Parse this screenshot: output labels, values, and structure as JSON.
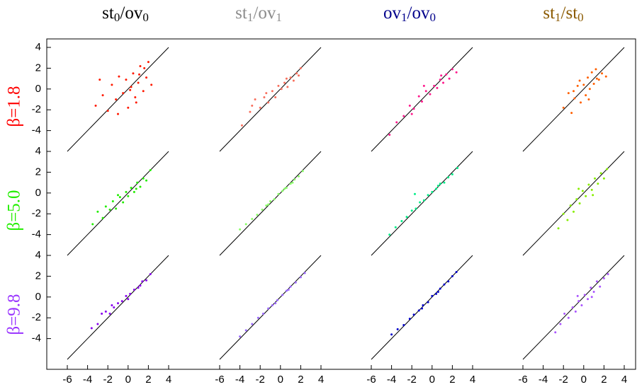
{
  "chart_data": [
    {
      "type": "scatter",
      "title": "st0/ov0",
      "title_color": "#000000",
      "ylabel": "β=1.8",
      "ylabel_color": "#ff0000",
      "color": "#ff1a00",
      "x": [
        -3.2,
        -2.5,
        -2.0,
        -1.6,
        -1.2,
        -0.9,
        -0.5,
        -0.2,
        0.0,
        0.3,
        0.5,
        0.7,
        1.0,
        1.2,
        1.5,
        1.8,
        2.0,
        2.3,
        -1.0,
        0.8,
        1.6,
        -2.8,
        0.2,
        1.1
      ],
      "y": [
        -1.6,
        -0.6,
        -2.1,
        0.4,
        -1.0,
        1.2,
        -0.4,
        0.9,
        -1.8,
        0.2,
        1.5,
        -0.8,
        0.6,
        2.2,
        -0.2,
        1.1,
        2.6,
        0.4,
        -2.4,
        -1.3,
        2.0,
        0.9,
        -0.1,
        1.4
      ],
      "xlim": [
        -6,
        4
      ],
      "ylim": [
        -6,
        4
      ],
      "yticks": [
        -4,
        -2,
        0,
        2,
        4
      ]
    },
    {
      "type": "scatter",
      "title": "st1/ov1",
      "title_color": "#8c8c8c",
      "color": "#f8705e",
      "x": [
        -3.8,
        -3.0,
        -2.5,
        -2.0,
        -1.6,
        -1.2,
        -0.8,
        -0.5,
        -0.2,
        0.1,
        0.4,
        0.7,
        1.0,
        1.3,
        1.6,
        2.0,
        -1.4,
        0.6,
        -2.8,
        1.8
      ],
      "y": [
        -3.5,
        -2.2,
        -1.0,
        -1.8,
        -0.8,
        -1.3,
        -0.2,
        -0.8,
        0.3,
        0.0,
        0.6,
        0.2,
        1.1,
        0.8,
        1.5,
        2.0,
        -0.4,
        1.0,
        -1.6,
        1.3
      ],
      "xlim": [
        -6,
        4
      ],
      "ylim": [
        -6,
        4
      ]
    },
    {
      "type": "scatter",
      "title": "ov1/ov0",
      "title_color": "#00008b",
      "color": "#ff1a8c",
      "x": [
        -4.2,
        -3.5,
        -2.8,
        -2.2,
        -1.8,
        -1.3,
        -1.0,
        -0.6,
        -0.2,
        0.2,
        0.5,
        0.8,
        1.1,
        1.4,
        1.7,
        2.0,
        2.4,
        -0.8,
        0.9,
        -2.0
      ],
      "y": [
        -4.4,
        -3.2,
        -2.6,
        -1.6,
        -1.9,
        -0.7,
        -1.2,
        -0.2,
        -0.5,
        0.3,
        0.1,
        0.9,
        0.6,
        1.4,
        1.0,
        1.9,
        1.6,
        0.3,
        1.3,
        -2.4
      ],
      "xlim": [
        -6,
        4
      ],
      "ylim": [
        -6,
        4
      ]
    },
    {
      "type": "scatter",
      "title": "st1/st0",
      "title_color": "#8b5a00",
      "color": "#ff6000",
      "x": [
        -2.0,
        -1.5,
        -1.2,
        -0.9,
        -0.6,
        -0.3,
        0.0,
        0.2,
        0.4,
        0.6,
        0.8,
        1.0,
        1.2,
        1.5,
        1.8,
        2.2,
        -1.0,
        0.5,
        1.3,
        -0.4
      ],
      "y": [
        -1.8,
        -0.4,
        -2.3,
        -0.9,
        0.3,
        -1.3,
        0.4,
        -0.6,
        1.1,
        0.0,
        1.6,
        0.5,
        1.9,
        0.9,
        1.5,
        1.2,
        -0.2,
        -1.0,
        1.0,
        0.8
      ],
      "xlim": [
        -6,
        4
      ],
      "ylim": [
        -6,
        4
      ]
    },
    {
      "type": "scatter",
      "ylabel": "β=5.0",
      "ylabel_color": "#22ee00",
      "color": "#22ee00",
      "x": [
        -3.5,
        -3.0,
        -2.5,
        -2.2,
        -1.8,
        -1.5,
        -1.2,
        -0.8,
        -0.5,
        -0.2,
        0.0,
        0.3,
        0.6,
        0.9,
        1.2,
        1.5,
        1.8,
        2.2,
        -1.0,
        0.8
      ],
      "y": [
        -3.0,
        -1.8,
        -2.4,
        -1.3,
        -1.6,
        -0.8,
        -1.5,
        -0.4,
        -0.9,
        0.1,
        -0.3,
        0.5,
        0.1,
        1.0,
        0.6,
        1.4,
        1.2,
        2.2,
        -0.2,
        0.4
      ],
      "xlim": [
        -6,
        4
      ],
      "ylim": [
        -6,
        4
      ],
      "yticks": [
        -4,
        -2,
        0,
        2,
        4
      ]
    },
    {
      "type": "scatter",
      "color": "#88ff66",
      "x": [
        -4.0,
        -3.4,
        -2.8,
        -2.3,
        -1.8,
        -1.4,
        -1.0,
        -0.6,
        -0.2,
        0.2,
        0.6,
        1.0,
        1.4,
        1.8,
        2.2,
        -1.2,
        0.4,
        1.2
      ],
      "y": [
        -3.5,
        -3.0,
        -2.5,
        -2.1,
        -1.6,
        -1.2,
        -0.8,
        -0.6,
        -0.1,
        0.2,
        0.5,
        0.9,
        1.3,
        1.6,
        2.1,
        -1.1,
        0.4,
        1.0
      ],
      "xlim": [
        -6,
        4
      ],
      "ylim": [
        -6,
        4
      ]
    },
    {
      "type": "scatter",
      "color": "#00ee88",
      "x": [
        -4.2,
        -3.6,
        -3.0,
        -2.5,
        -2.0,
        -1.6,
        -1.2,
        -0.8,
        -0.4,
        0.0,
        0.4,
        0.8,
        1.2,
        1.6,
        2.0,
        2.5,
        -1.7,
        0.6
      ],
      "y": [
        -4.0,
        -3.3,
        -2.7,
        -2.3,
        -1.7,
        -1.5,
        -0.9,
        -0.7,
        -0.2,
        0.1,
        0.4,
        0.9,
        1.0,
        1.5,
        1.8,
        2.4,
        -0.1,
        0.7
      ],
      "xlim": [
        -6,
        4
      ],
      "ylim": [
        -6,
        4
      ]
    },
    {
      "type": "scatter",
      "color": "#88ee00",
      "x": [
        -2.5,
        -2.0,
        -1.6,
        -1.3,
        -1.0,
        -0.7,
        -0.4,
        -0.1,
        0.2,
        0.5,
        0.8,
        1.1,
        1.4,
        1.7,
        2.0,
        2.3,
        -0.5,
        0.9
      ],
      "y": [
        -3.4,
        -2.0,
        -2.6,
        -1.2,
        -1.8,
        -0.6,
        -1.0,
        0.2,
        -0.3,
        0.8,
        0.3,
        1.4,
        0.9,
        1.9,
        1.4,
        2.3,
        0.4,
        -0.2
      ],
      "xlim": [
        -6,
        4
      ],
      "ylim": [
        -6,
        4
      ]
    },
    {
      "type": "scatter",
      "ylabel": "β=9.8",
      "ylabel_color": "#9933ff",
      "color": "#8800ee",
      "x": [
        -3.6,
        -3.0,
        -2.6,
        -2.2,
        -1.8,
        -1.4,
        -1.0,
        -0.6,
        -0.2,
        0.2,
        0.6,
        1.0,
        1.4,
        1.8,
        2.2,
        -1.6,
        0.0,
        1.2
      ],
      "y": [
        -3.0,
        -2.6,
        -1.6,
        -1.4,
        -1.6,
        -1.0,
        -0.6,
        -0.4,
        0.1,
        0.3,
        0.7,
        0.9,
        1.5,
        1.6,
        2.2,
        -0.8,
        -0.2,
        1.1
      ],
      "xlim": [
        -6,
        4
      ],
      "ylim": [
        -6,
        4
      ],
      "xticks": [
        -6,
        -4,
        -2,
        0,
        2,
        4
      ],
      "yticks": [
        -4,
        -2,
        0,
        2,
        4
      ]
    },
    {
      "type": "scatter",
      "color": "#9966ff",
      "x": [
        -4.0,
        -3.4,
        -2.8,
        -2.2,
        -1.7,
        -1.2,
        -0.8,
        -0.3,
        0.2,
        0.6,
        1.0,
        1.5,
        2.0,
        2.4,
        -0.5,
        0.8
      ],
      "y": [
        -3.8,
        -3.2,
        -2.6,
        -2.0,
        -1.6,
        -1.1,
        -0.8,
        -0.3,
        0.2,
        0.6,
        1.0,
        1.4,
        1.9,
        2.3,
        -0.6,
        0.7
      ],
      "xlim": [
        -6,
        4
      ],
      "ylim": [
        -6,
        4
      ],
      "xticks": [
        -6,
        -4,
        -2,
        0,
        2,
        4
      ]
    },
    {
      "type": "scatter",
      "color": "#0000cc",
      "x": [
        -4.0,
        -3.4,
        -2.8,
        -2.2,
        -1.8,
        -1.3,
        -0.9,
        -0.4,
        0.0,
        0.4,
        0.8,
        1.2,
        1.6,
        2.0,
        2.4,
        -1.0,
        0.6
      ],
      "y": [
        -3.6,
        -3.1,
        -2.7,
        -2.1,
        -1.7,
        -1.3,
        -0.8,
        -0.5,
        0.1,
        0.3,
        0.8,
        1.2,
        1.5,
        2.0,
        2.4,
        -1.1,
        0.5
      ],
      "xlim": [
        -6,
        4
      ],
      "ylim": [
        -6,
        4
      ],
      "xticks": [
        -6,
        -4,
        -2,
        0,
        2,
        4
      ]
    },
    {
      "type": "scatter",
      "color": "#aa55ff",
      "x": [
        -2.8,
        -2.3,
        -1.9,
        -1.5,
        -1.1,
        -0.8,
        -0.5,
        -0.2,
        0.1,
        0.4,
        0.7,
        1.0,
        1.3,
        1.6,
        2.0,
        2.4,
        -0.6,
        0.8
      ],
      "y": [
        -3.4,
        -2.6,
        -1.6,
        -2.0,
        -1.0,
        -1.4,
        -0.4,
        -0.8,
        0.2,
        -0.2,
        0.9,
        0.5,
        1.5,
        1.0,
        1.8,
        2.2,
        0.1,
        0.0
      ],
      "xlim": [
        -6,
        4
      ],
      "ylim": [
        -6,
        4
      ],
      "xticks": [
        -6,
        -4,
        -2,
        0,
        2,
        4
      ]
    }
  ]
}
